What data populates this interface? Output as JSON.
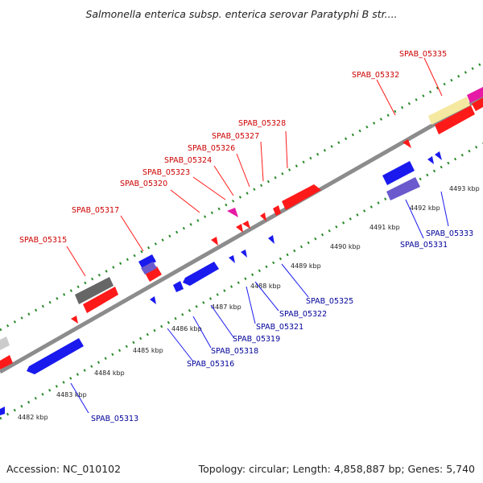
{
  "title": "Salmonella enterica subsp. enterica serovar Paratyphi B str....",
  "footer": {
    "accession": "Accession: NC_010102",
    "summary": "Topology: circular; Length: 4,858,887 bp; Genes: 5,740"
  },
  "colors": {
    "forward_gene": "#ff1a1a",
    "reverse_gene": "#1a1aee",
    "label_forward": "#cc0000",
    "label_reverse": "#000099",
    "backbone": "#8c8c8c",
    "tick": "#1e7a1e"
  },
  "scale_labels": [
    "4482 kbp",
    "4483 kbp",
    "4484 kbp",
    "4485 kbp",
    "4486 kbp",
    "4487 kbp",
    "4488 kbp",
    "4489 kbp",
    "4490 kbp",
    "4491 kbp",
    "4492 kbp",
    "4493 kbp"
  ],
  "forward_labels": [
    "SPAB_05315",
    "SPAB_05317",
    "SPAB_05320",
    "SPAB_05323",
    "SPAB_05324",
    "SPAB_05326",
    "SPAB_05327",
    "SPAB_05328",
    "SPAB_05332",
    "SPAB_05335"
  ],
  "reverse_labels": [
    "SPAB_05313",
    "SPAB_05316",
    "SPAB_05318",
    "SPAB_05319",
    "SPAB_05321",
    "SPAB_05322",
    "SPAB_05325",
    "SPAB_05331",
    "SPAB_05333"
  ]
}
